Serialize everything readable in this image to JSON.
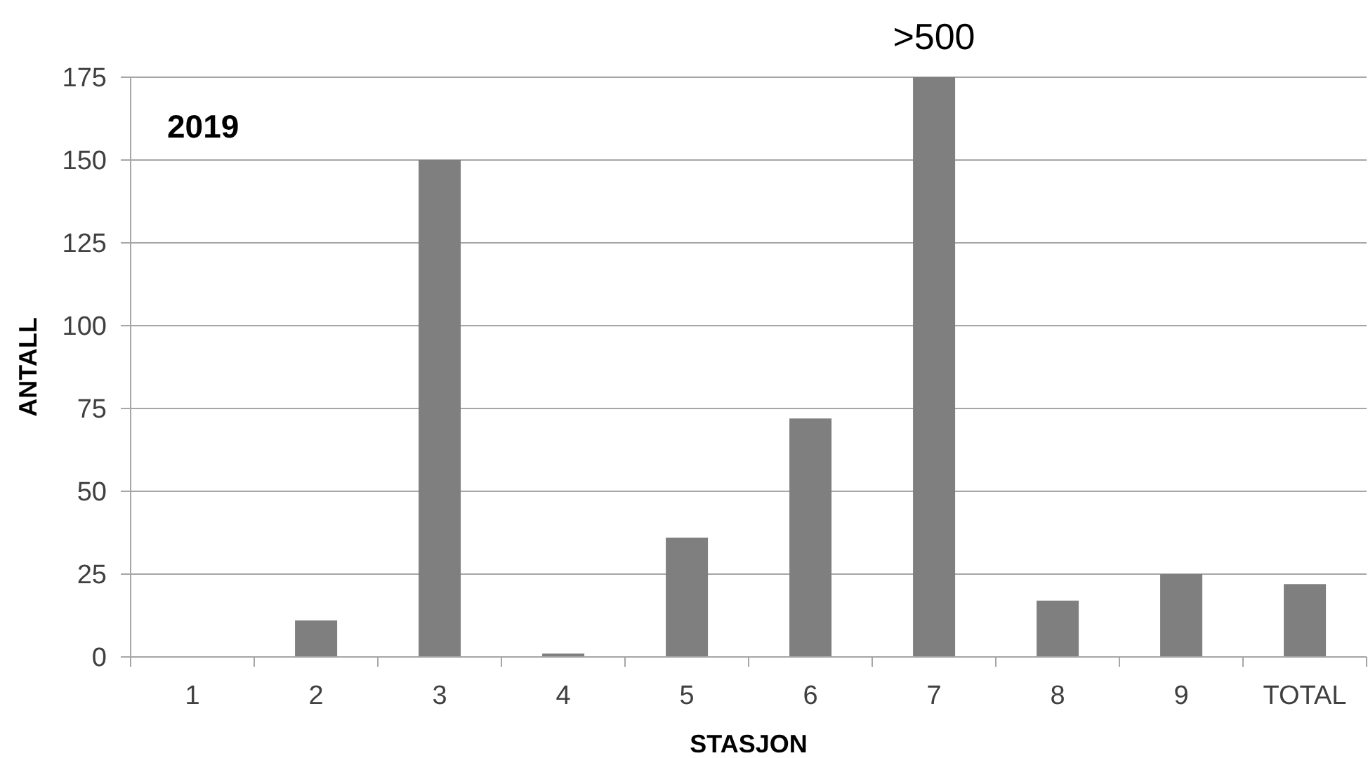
{
  "chart_data": {
    "type": "bar",
    "xlabel": "STASJON",
    "ylabel": "ANTALL",
    "annotations": [
      "2019",
      {
        "text": ">500",
        "x": "7",
        "y": 175
      }
    ],
    "categories": [
      "1",
      "2",
      "3",
      "4",
      "5",
      "6",
      "7",
      "8",
      "9",
      "TOTAL"
    ],
    "values": [
      0,
      11,
      150,
      1,
      36,
      72,
      175,
      17,
      25,
      22
    ],
    "color": "#7f7f7f",
    "ylim": [
      0,
      175
    ],
    "yticks": [
      0,
      25,
      50,
      75,
      100,
      125,
      150,
      175
    ],
    "grid": "y"
  }
}
